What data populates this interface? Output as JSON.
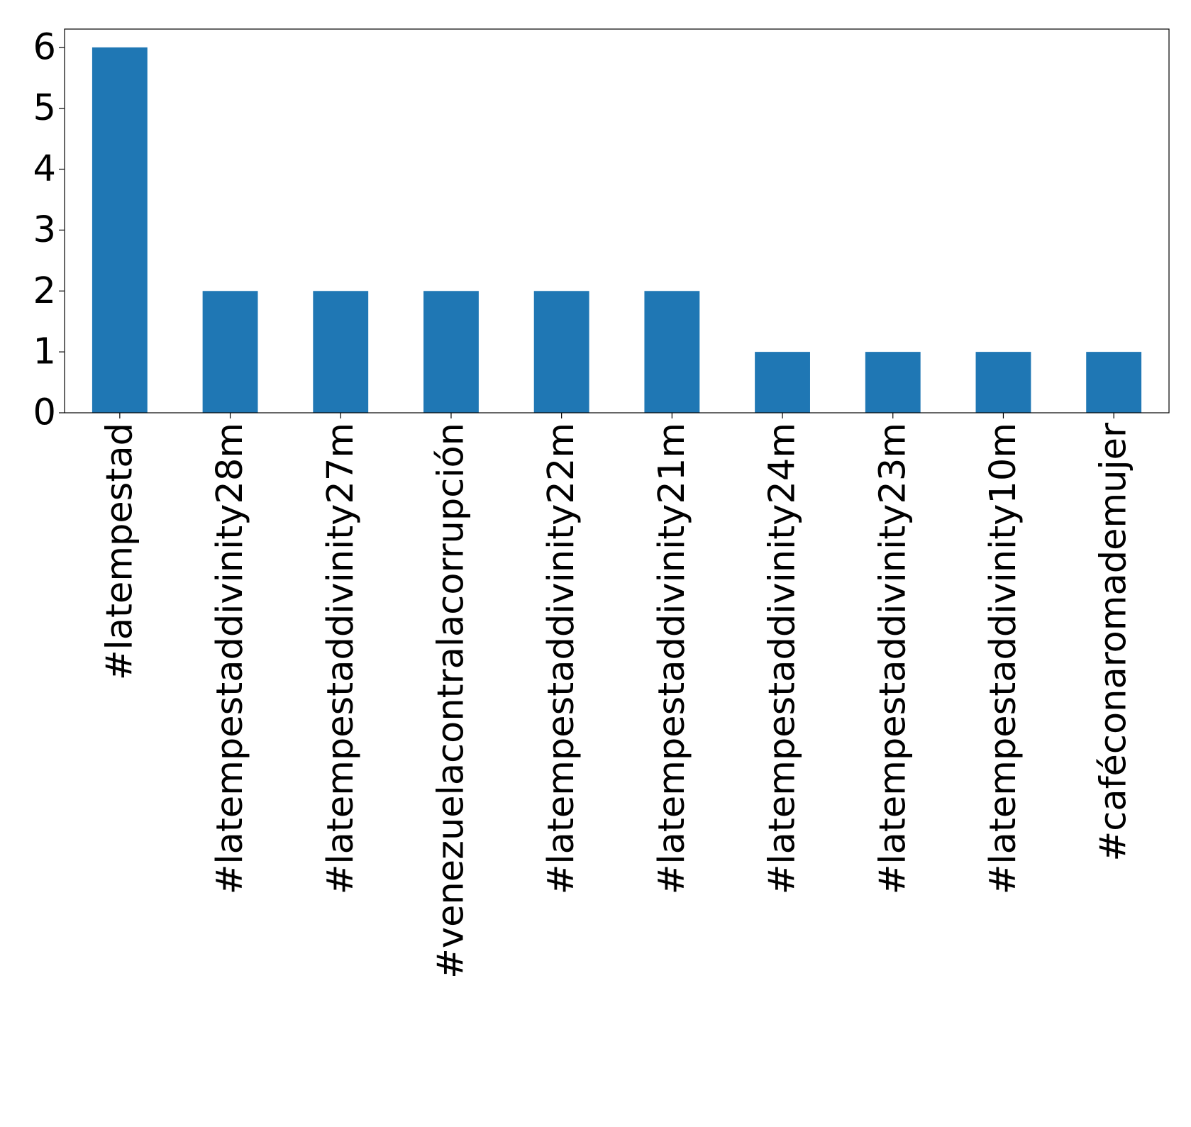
{
  "chart_data": {
    "type": "bar",
    "categories": [
      "#latempestad",
      "#latempestaddivinity28m",
      "#latempestaddivinity27m",
      "#venezuelacontralacorrupción",
      "#latempestaddivinity22m",
      "#latempestaddivinity21m",
      "#latempestaddivinity24m",
      "#latempestaddivinity23m",
      "#latempestaddivinity10m",
      "#caféconaromademujer"
    ],
    "values": [
      6,
      2,
      2,
      2,
      2,
      2,
      1,
      1,
      1,
      1
    ],
    "color": "#1f77b4",
    "ylim": [
      0,
      6.3
    ],
    "yticks": [
      0,
      1,
      2,
      3,
      4,
      5,
      6
    ],
    "grid": false
  }
}
